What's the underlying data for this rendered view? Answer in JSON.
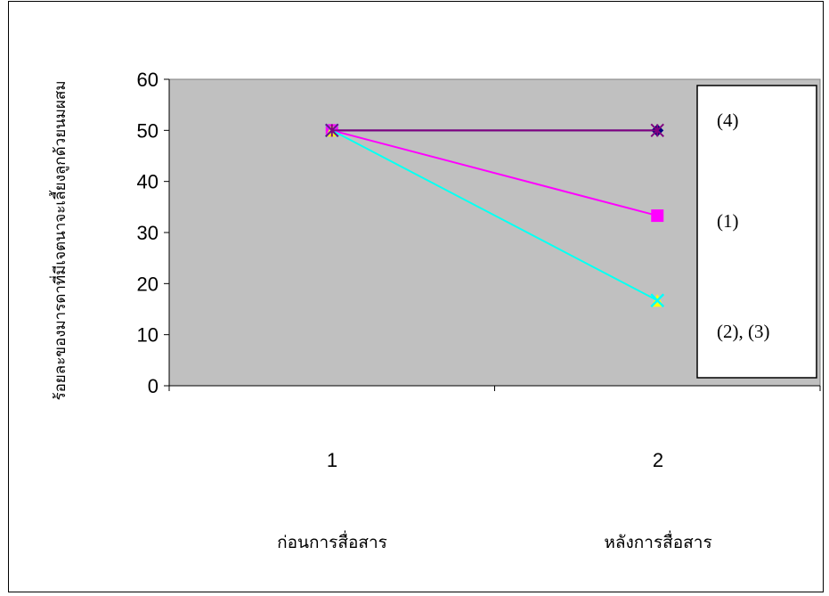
{
  "chart_data": {
    "type": "line",
    "ylabel": "ร้อยละของมารดาที่มีเจตนาจะเลี้ยงลูกด้วยนมผสม",
    "ylim": [
      0,
      60
    ],
    "yticks": [
      "0",
      "10",
      "20",
      "30",
      "40",
      "50",
      "60"
    ],
    "categories": [
      "1",
      "2"
    ],
    "category_labels": [
      "ก่อนการสื่อสาร",
      "หลังการสื่อสาร"
    ],
    "grid": false,
    "plot_background": "#C0C0C0",
    "series": [
      {
        "values": [
          50,
          50
        ],
        "color": "#000080",
        "marker": "diamond"
      },
      {
        "values": [
          50,
          33.3
        ],
        "color": "#FF00FF",
        "marker": "square"
      },
      {
        "values": [
          50,
          16.7
        ],
        "color": "#FFFF00",
        "marker": "triangle"
      },
      {
        "values": [
          50,
          16.7
        ],
        "color": "#00FFFF",
        "marker": "x"
      },
      {
        "values": [
          50,
          50
        ],
        "color": "#800080",
        "marker": "star"
      }
    ],
    "annotations": [
      "(4)",
      "(1)",
      "(2), (3)"
    ]
  }
}
